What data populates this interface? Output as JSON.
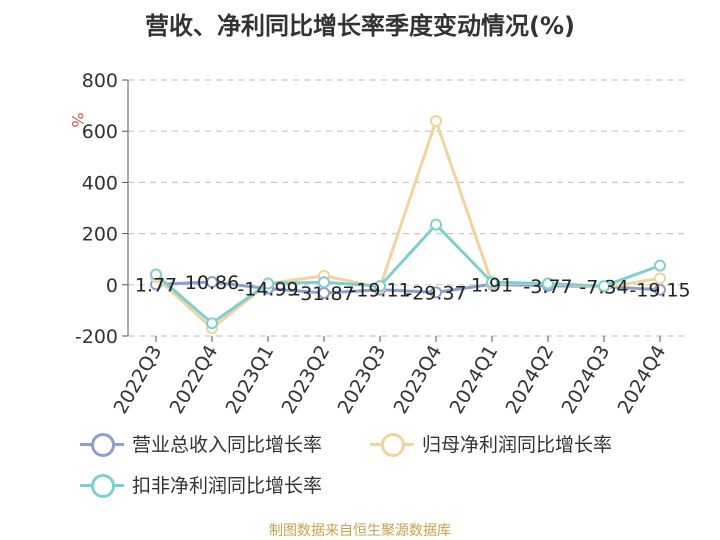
{
  "title": "营收、净利同比增长率季度变动情况(%)",
  "source": "制图数据来自恒生聚源数据库",
  "chart_data": {
    "type": "line",
    "title": "营收、净利同比增长率季度变动情况(%)",
    "ylabel": "%",
    "xlabel": "",
    "ylim": [
      -200,
      800
    ],
    "yticks": [
      -200,
      0,
      200,
      400,
      600,
      800
    ],
    "grid": true,
    "legend_position": "bottom",
    "categories": [
      "2022Q3",
      "2022Q4",
      "2023Q1",
      "2023Q2",
      "2023Q3",
      "2023Q4",
      "2024Q1",
      "2024Q2",
      "2024Q3",
      "2024Q4"
    ],
    "series": [
      {
        "name": "营业总收入同比增长率",
        "color": "#8d9fd1",
        "values": [
          1.77,
          10.86,
          -14.99,
          -31.87,
          -19.11,
          -29.37,
          1.91,
          -3.77,
          -7.34,
          -19.15
        ],
        "data_labels": [
          "1.77",
          "10.86",
          "-14.99",
          "-31.87",
          "-19.11",
          "-29.37",
          "1.91",
          "-3.77",
          "-7.34",
          "-19.15"
        ]
      },
      {
        "name": "归母净利润同比增长率",
        "color": "#f2d39b",
        "values": [
          30,
          -170,
          5,
          35,
          -10,
          640,
          5,
          5,
          -10,
          25
        ]
      },
      {
        "name": "扣非净利润同比增长率",
        "color": "#7ecfcf",
        "values": [
          40,
          -150,
          5,
          10,
          -5,
          235,
          10,
          5,
          -5,
          75
        ]
      }
    ]
  }
}
